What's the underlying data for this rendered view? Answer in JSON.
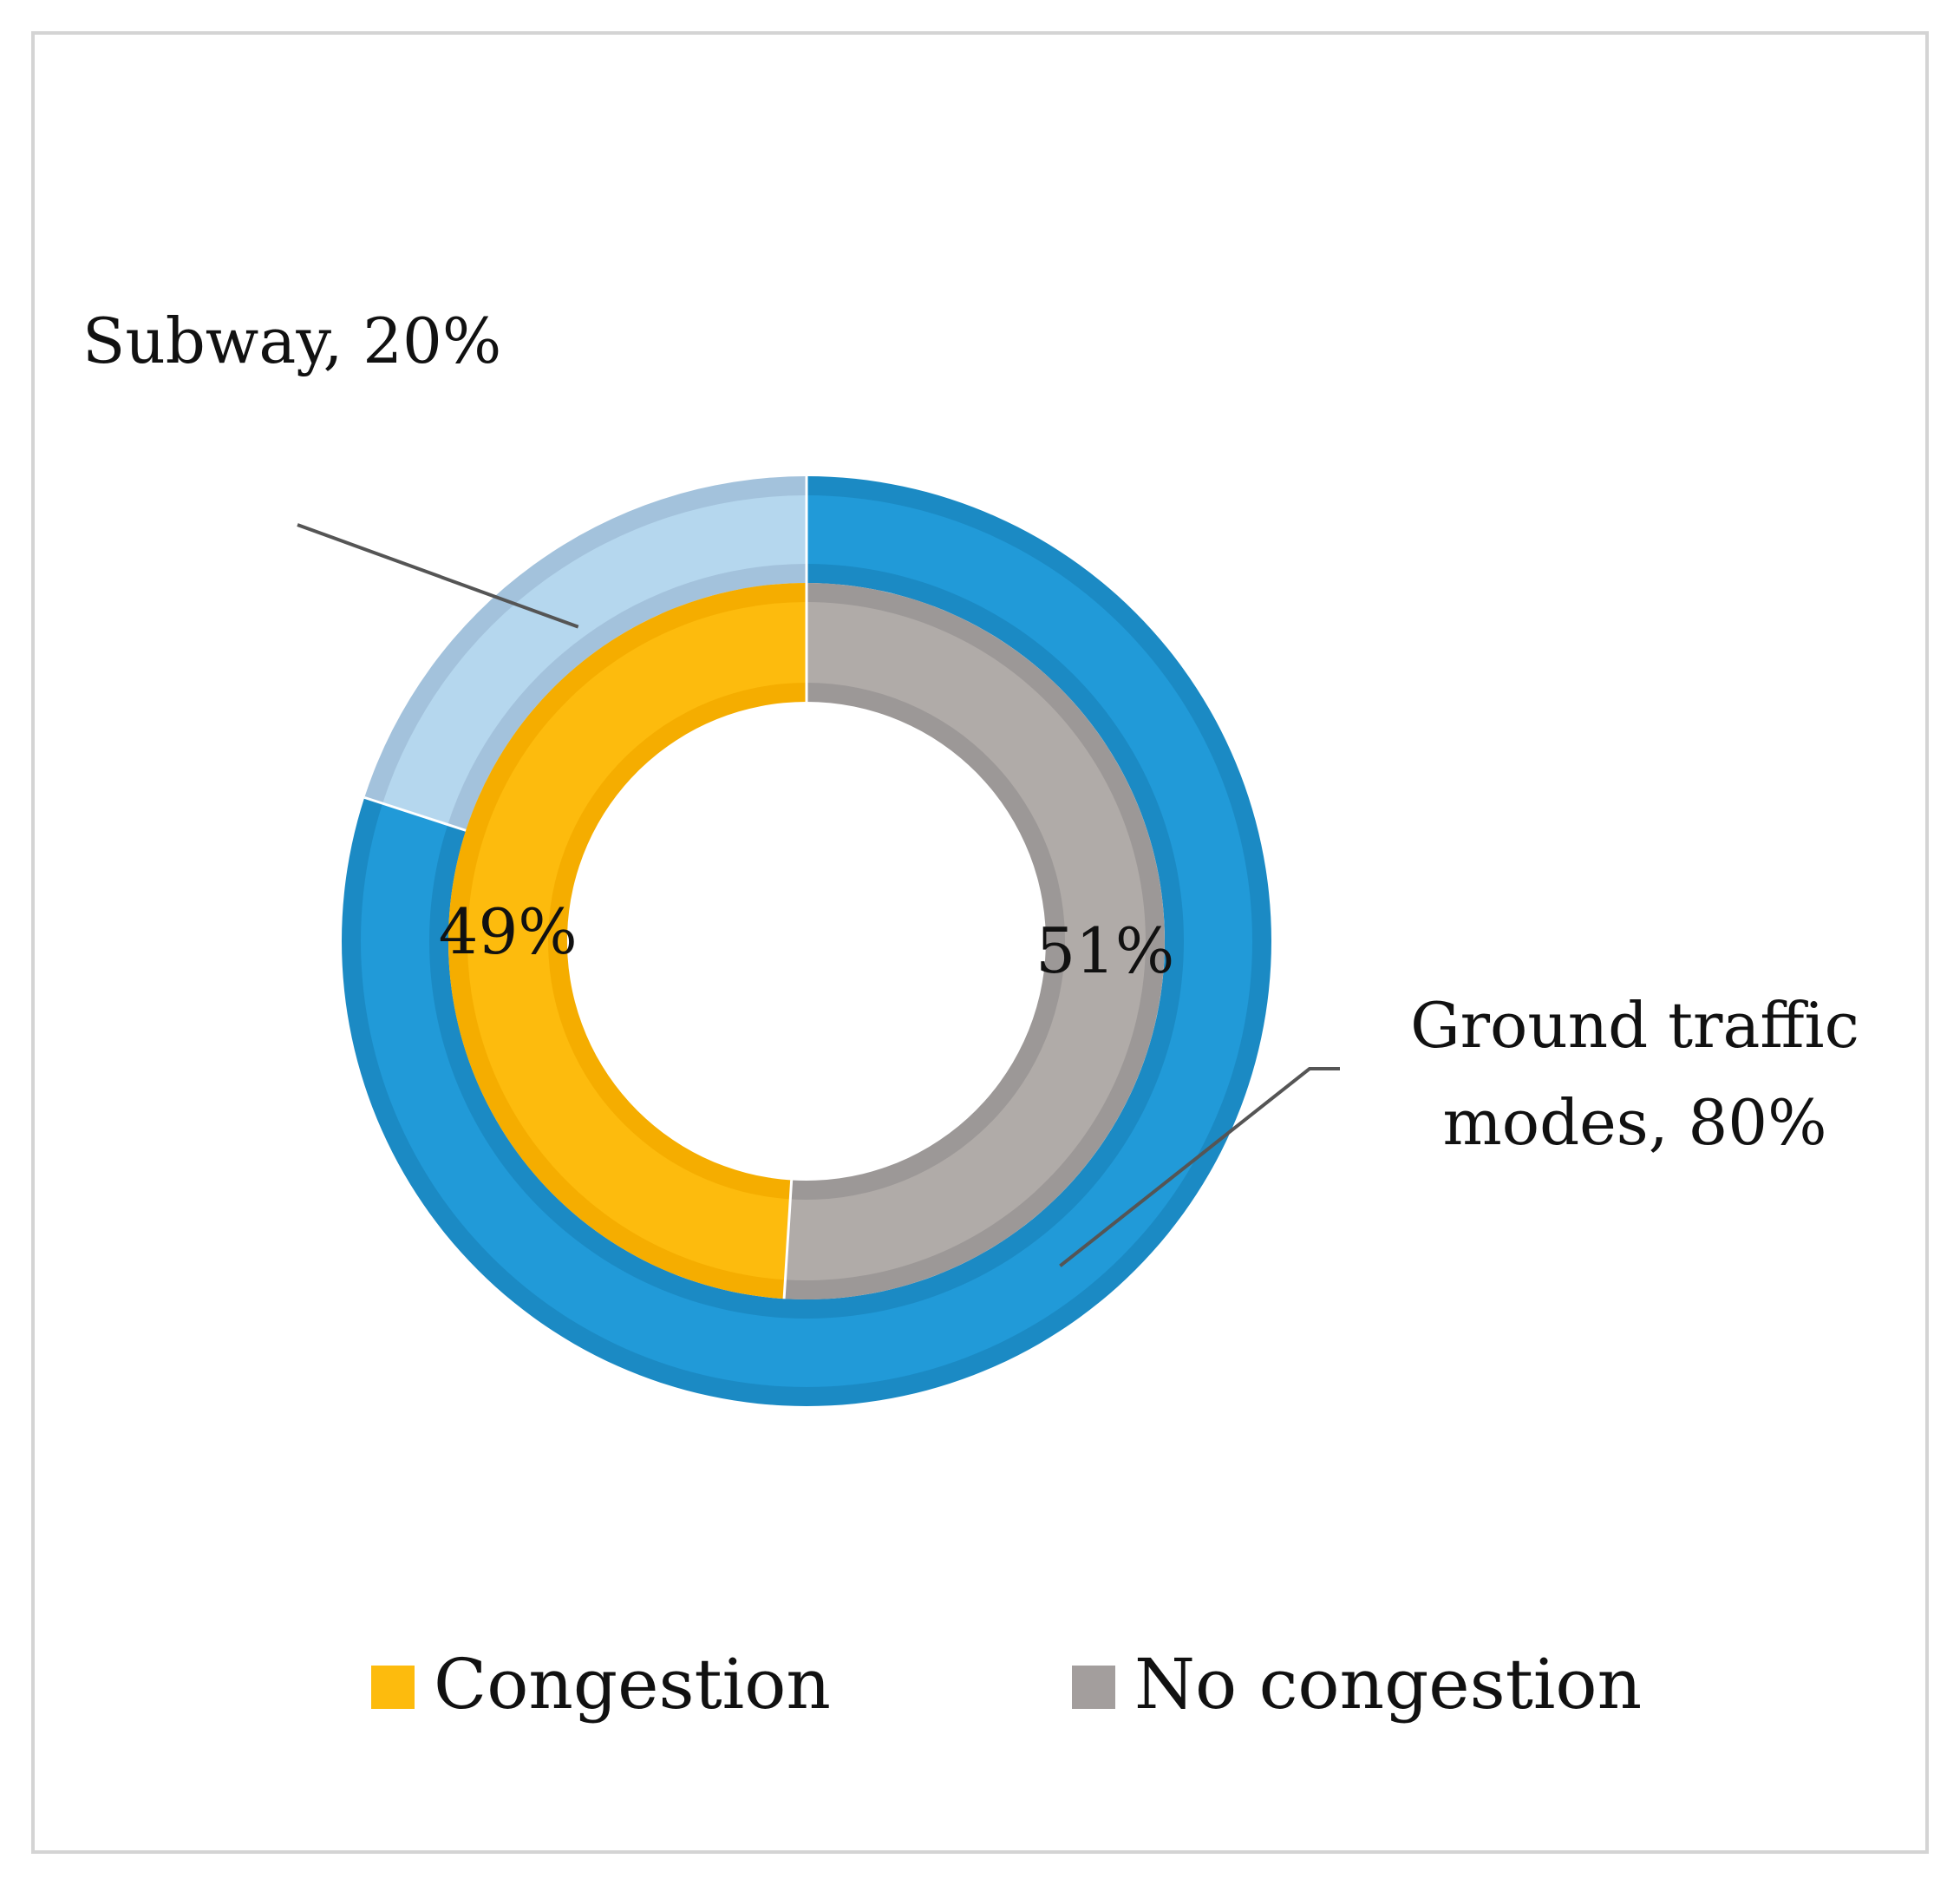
{
  "chart_data": {
    "type": "pie",
    "subtype": "nested-donut",
    "title": "",
    "legend_position": "bottom",
    "outer_ring": {
      "slices": [
        {
          "name": "Subway",
          "value": 20,
          "color": "#b5d7ee",
          "border": "#a3c2dc",
          "label_lines": [
            "Subway, 20%"
          ]
        },
        {
          "name": "Ground traffic modes",
          "value": 80,
          "color": "#219ad8",
          "border": "#1b8ac4",
          "label_lines": [
            "Ground traffic",
            "modes, 80%"
          ]
        }
      ]
    },
    "inner_ring": {
      "slices": [
        {
          "name": "Congestion",
          "value": 49,
          "color": "#fdbb0d",
          "border": "#f5ad00",
          "label": "49%"
        },
        {
          "name": "No congestion",
          "value": 51,
          "color": "#b0aba8",
          "border": "#9c9897",
          "label": "51%"
        }
      ]
    },
    "legend": [
      {
        "name": "Congestion",
        "color": "#fdbb0d"
      },
      {
        "name": "No congestion",
        "color": "#a39e9d"
      }
    ],
    "leader_line_color": "#555555"
  }
}
